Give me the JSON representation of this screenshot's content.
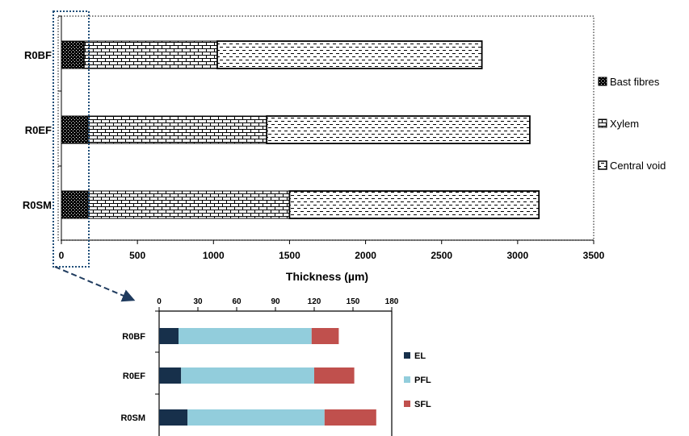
{
  "chart_data": [
    {
      "type": "bar",
      "orientation": "horizontal",
      "stacked": true,
      "categories": [
        "R0BF",
        "R0EF",
        "R0SM"
      ],
      "series": [
        {
          "name": "Bast fibres",
          "values": [
            150,
            175,
            175
          ]
        },
        {
          "name": "Xylem",
          "values": [
            875,
            1175,
            1325
          ]
        },
        {
          "name": "Central void",
          "values": [
            1740,
            1730,
            1640
          ]
        }
      ],
      "xlabel": "Thickness (µm)",
      "ylabel": "",
      "xlim": [
        0,
        3500
      ],
      "ticks": [
        "0",
        "500",
        "1000",
        "1500",
        "2000",
        "2500",
        "3000",
        "3500"
      ],
      "legend_position": "right",
      "colors": {
        "bast": "#000000",
        "xylem": "#ffffff",
        "void": "#ffffff",
        "frame": "#1f4e79"
      }
    },
    {
      "type": "bar",
      "orientation": "horizontal",
      "stacked": true,
      "categories": [
        "R0BF",
        "R0EF",
        "R0SM"
      ],
      "series": [
        {
          "name": "EL",
          "values": [
            15,
            17,
            22
          ]
        },
        {
          "name": "PFL",
          "values": [
            103,
            103,
            106
          ]
        },
        {
          "name": "SFL",
          "values": [
            21,
            31,
            40
          ]
        }
      ],
      "xlim": [
        0,
        180
      ],
      "ticks": [
        "0",
        "30",
        "60",
        "90",
        "120",
        "150",
        "180"
      ],
      "legend_position": "right",
      "colors": {
        "EL": "#17304b",
        "PFL": "#92cddc",
        "SFL": "#c0504d"
      }
    }
  ]
}
